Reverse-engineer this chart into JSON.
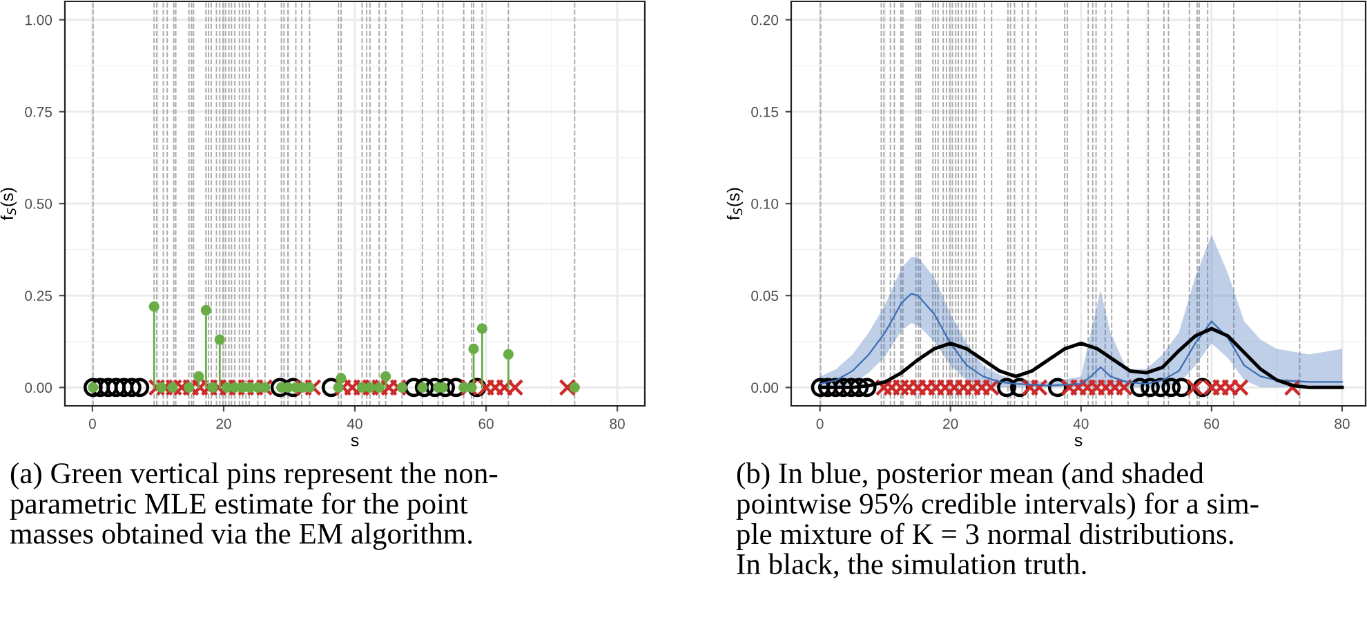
{
  "chart_data": [
    {
      "type": "lollipop",
      "xlabel": "s",
      "ylabel": "f$_{S}$(s)",
      "grid": true,
      "series": [
        {
          "color": "#6aad46",
          "marker": "circle",
          "x": [
            0.1,
            9.4,
            10.5,
            12.2,
            14.7,
            16.2,
            17.3,
            18.3,
            19.4,
            20.5,
            21.7,
            22.9,
            24.0,
            25.2,
            26.3,
            28.8,
            29.8,
            31.0,
            32.0,
            33.1,
            37.5,
            37.9,
            41.1,
            42.3,
            43.7,
            44.7,
            47.2,
            50.3,
            52.7,
            53.4,
            56.6,
            57.8,
            58.1,
            59.4,
            63.4,
            73.5
          ],
          "values": [
            0,
            0.22,
            0,
            0,
            0,
            0.03,
            0.21,
            0,
            0.13,
            0,
            0,
            0,
            0,
            0,
            0,
            0,
            0,
            0,
            0,
            0,
            0,
            0.025,
            0,
            0,
            0,
            0.03,
            0,
            0,
            0,
            0,
            0,
            0,
            0.105,
            0.16,
            0.09,
            0
          ]
        },
        {
          "type": "scatter",
          "color": "#000000",
          "marker": "circle",
          "x": [
            0.1,
            1.2,
            2.4,
            3.6,
            4.8,
            6.0,
            7.2,
            28.6,
            30.6,
            36.4,
            49.0,
            50.6,
            52.2,
            53.8,
            55.4,
            58.6
          ],
          "values": [
            0,
            0,
            0,
            0,
            0,
            0,
            0,
            0,
            0,
            0,
            0,
            0,
            0,
            0,
            0,
            0
          ]
        },
        {
          "type": "scatter",
          "color": "#cc2a2a",
          "marker": "cross",
          "x": [
            9.8,
            11.0,
            12.4,
            13.6,
            15.0,
            16.4,
            17.8,
            19.2,
            20.6,
            22.0,
            23.4,
            24.8,
            26.2,
            32.2,
            33.6,
            38.2,
            39.6,
            41.0,
            42.4,
            43.8,
            45.2,
            46.6,
            57.4,
            60.0,
            61.4,
            62.8,
            64.4,
            72.4
          ],
          "values": [
            0,
            0,
            0,
            0,
            0,
            0,
            0,
            0,
            0,
            0,
            0,
            0,
            0,
            0,
            0,
            0,
            0,
            0,
            0,
            0,
            0,
            0,
            0,
            0,
            0,
            0,
            0,
            0
          ]
        }
      ],
      "xlim": [
        -4.2,
        84.2
      ],
      "ylim": [
        -0.05,
        1.05
      ],
      "xticks": [
        0,
        20,
        40,
        60,
        80
      ],
      "yticks": [
        {
          "value": 0,
          "label": "0.00"
        },
        {
          "value": 0.25,
          "label": "0.25"
        },
        {
          "value": 0.5,
          "label": "0.50"
        },
        {
          "value": 0.75,
          "label": "0.75"
        },
        {
          "value": 1,
          "label": "1.00"
        }
      ],
      "ref_lines": [
        {
          "axis": "x",
          "value": 0.1,
          "line_style": "dashed"
        },
        {
          "axis": "x",
          "value": 9.4,
          "line_style": "dashed"
        },
        {
          "axis": "x",
          "value": 9.8,
          "line_style": "dashed"
        },
        {
          "axis": "x",
          "value": 10.8,
          "line_style": "dashed"
        },
        {
          "axis": "x",
          "value": 11.4,
          "line_style": "dashed"
        },
        {
          "axis": "x",
          "value": 12.4,
          "line_style": "dashed"
        },
        {
          "axis": "x",
          "value": 12.7,
          "line_style": "dashed"
        },
        {
          "axis": "x",
          "value": 14.7,
          "line_style": "dashed"
        },
        {
          "axis": "x",
          "value": 15.1,
          "line_style": "dashed"
        },
        {
          "axis": "x",
          "value": 15.4,
          "line_style": "dashed"
        },
        {
          "axis": "x",
          "value": 17.3,
          "line_style": "dashed"
        },
        {
          "axis": "x",
          "value": 17.7,
          "line_style": "dashed"
        },
        {
          "axis": "x",
          "value": 18.1,
          "line_style": "dashed"
        },
        {
          "axis": "x",
          "value": 18.9,
          "line_style": "dashed"
        },
        {
          "axis": "x",
          "value": 19.4,
          "line_style": "dashed"
        },
        {
          "axis": "x",
          "value": 19.9,
          "line_style": "dashed"
        },
        {
          "axis": "x",
          "value": 20.3,
          "line_style": "dashed"
        },
        {
          "axis": "x",
          "value": 20.8,
          "line_style": "dashed"
        },
        {
          "axis": "x",
          "value": 21.2,
          "line_style": "dashed"
        },
        {
          "axis": "x",
          "value": 21.7,
          "line_style": "dashed"
        },
        {
          "axis": "x",
          "value": 22.4,
          "line_style": "dashed"
        },
        {
          "axis": "x",
          "value": 22.9,
          "line_style": "dashed"
        },
        {
          "axis": "x",
          "value": 23.4,
          "line_style": "dashed"
        },
        {
          "axis": "x",
          "value": 23.9,
          "line_style": "dashed"
        },
        {
          "axis": "x",
          "value": 25.2,
          "line_style": "dashed"
        },
        {
          "axis": "x",
          "value": 26.3,
          "line_style": "dashed"
        },
        {
          "axis": "x",
          "value": 28.8,
          "line_style": "dashed"
        },
        {
          "axis": "x",
          "value": 29.2,
          "line_style": "dashed"
        },
        {
          "axis": "x",
          "value": 29.8,
          "line_style": "dashed"
        },
        {
          "axis": "x",
          "value": 31.0,
          "line_style": "dashed"
        },
        {
          "axis": "x",
          "value": 31.9,
          "line_style": "dashed"
        },
        {
          "axis": "x",
          "value": 33.1,
          "line_style": "dashed"
        },
        {
          "axis": "x",
          "value": 37.5,
          "line_style": "dashed"
        },
        {
          "axis": "x",
          "value": 37.9,
          "line_style": "dashed"
        },
        {
          "axis": "x",
          "value": 41.1,
          "line_style": "dashed"
        },
        {
          "axis": "x",
          "value": 41.8,
          "line_style": "dashed"
        },
        {
          "axis": "x",
          "value": 42.3,
          "line_style": "dashed"
        },
        {
          "axis": "x",
          "value": 43.7,
          "line_style": "dashed"
        },
        {
          "axis": "x",
          "value": 44.7,
          "line_style": "dashed"
        },
        {
          "axis": "x",
          "value": 47.2,
          "line_style": "dashed"
        },
        {
          "axis": "x",
          "value": 50.3,
          "line_style": "dashed"
        },
        {
          "axis": "x",
          "value": 52.7,
          "line_style": "dashed"
        },
        {
          "axis": "x",
          "value": 53.4,
          "line_style": "dashed"
        },
        {
          "axis": "x",
          "value": 56.6,
          "line_style": "dashed"
        },
        {
          "axis": "x",
          "value": 57.8,
          "line_style": "dashed"
        },
        {
          "axis": "x",
          "value": 58.1,
          "line_style": "dashed"
        },
        {
          "axis": "x",
          "value": 59.4,
          "line_style": "dashed"
        },
        {
          "axis": "x",
          "value": 63.4,
          "line_style": "dashed"
        },
        {
          "axis": "x",
          "value": 73.5,
          "line_style": "dashed"
        }
      ],
      "annotations": [
        "(a) Green vertical pins represent the non-\nparametric MLE estimate for the point\nmasses obtained via the EM algorithm."
      ]
    },
    {
      "type": "line",
      "xlabel": "s",
      "ylabel": "f$_{S}$(s)",
      "grid": true,
      "series": [
        {
          "color": "#3a6db5",
          "x": [
            0,
            2.5,
            5,
            7.5,
            10,
            12.5,
            14,
            15,
            17.5,
            20,
            22.5,
            25,
            27.5,
            30,
            35,
            40,
            41.5,
            43,
            44.5,
            47,
            50,
            52.5,
            55,
            57.5,
            60,
            62.5,
            65,
            67.5,
            70,
            75,
            80
          ],
          "values": [
            0.002,
            0.004,
            0.009,
            0.018,
            0.03,
            0.046,
            0.051,
            0.05,
            0.04,
            0.024,
            0.012,
            0.006,
            0.003,
            0.002,
            0.001,
            0.002,
            0.006,
            0.011,
            0.006,
            0.003,
            0.002,
            0.004,
            0.009,
            0.024,
            0.036,
            0.027,
            0.012,
            0.006,
            0.004,
            0.003,
            0.003
          ],
          "lower": [
            0,
            0,
            0.002,
            0.008,
            0.017,
            0.031,
            0.035,
            0.034,
            0.025,
            0.012,
            0.004,
            0.001,
            0,
            0,
            0,
            0,
            0,
            0.002,
            0,
            0,
            0,
            0,
            0.002,
            0.012,
            0.024,
            0.016,
            0.004,
            0,
            0,
            0,
            0
          ],
          "upper": [
            0.006,
            0.01,
            0.018,
            0.03,
            0.045,
            0.065,
            0.071,
            0.071,
            0.06,
            0.04,
            0.024,
            0.012,
            0.007,
            0.004,
            0.003,
            0.006,
            0.03,
            0.053,
            0.03,
            0.01,
            0.01,
            0.018,
            0.03,
            0.06,
            0.083,
            0.062,
            0.036,
            0.026,
            0.021,
            0.018,
            0.021
          ]
        },
        {
          "color": "#000000",
          "x": [
            0,
            2.5,
            5,
            7.5,
            10,
            12.5,
            15,
            17.5,
            20,
            22.5,
            25,
            27.5,
            30,
            32.5,
            35,
            37.5,
            40,
            42.5,
            45,
            47.5,
            50,
            52.5,
            55,
            57.5,
            60,
            62.5,
            65,
            67.5,
            70,
            72.5,
            75,
            77.5,
            80
          ],
          "values": [
            0,
            0,
            0,
            0.001,
            0.003,
            0.008,
            0.015,
            0.021,
            0.024,
            0.021,
            0.015,
            0.009,
            0.006,
            0.009,
            0.015,
            0.021,
            0.024,
            0.021,
            0.015,
            0.009,
            0.008,
            0.011,
            0.02,
            0.028,
            0.032,
            0.028,
            0.019,
            0.01,
            0.004,
            0.001,
            0,
            0,
            0
          ]
        },
        {
          "type": "scatter",
          "color": "#000000",
          "marker": "circle",
          "x": [
            0.1,
            1.2,
            2.4,
            3.6,
            4.8,
            6.0,
            7.2,
            28.6,
            30.6,
            36.4,
            49.0,
            50.6,
            52.2,
            53.8,
            55.4,
            58.6
          ],
          "values": [
            0,
            0,
            0,
            0,
            0,
            0,
            0,
            0,
            0,
            0,
            0,
            0,
            0,
            0,
            0,
            0
          ]
        },
        {
          "type": "scatter",
          "color": "#cc2a2a",
          "marker": "cross",
          "x": [
            9.8,
            11.0,
            12.4,
            13.6,
            15.0,
            16.4,
            17.8,
            19.2,
            20.6,
            22.0,
            23.4,
            24.8,
            26.2,
            32.2,
            33.6,
            38.2,
            39.6,
            41.0,
            42.4,
            43.8,
            45.2,
            46.6,
            57.4,
            60.0,
            61.4,
            62.8,
            64.4,
            72.4
          ],
          "values": [
            0,
            0,
            0,
            0,
            0,
            0,
            0,
            0,
            0,
            0,
            0,
            0,
            0,
            0,
            0,
            0,
            0,
            0,
            0,
            0,
            0,
            0,
            0,
            0,
            0,
            0,
            0,
            0
          ]
        }
      ],
      "xlim": [
        -4.4,
        83.6
      ],
      "ylim": [
        -0.01,
        0.21
      ],
      "xticks": [
        0,
        20,
        40,
        60,
        80
      ],
      "yticks": [
        {
          "value": 0,
          "label": "0.00"
        },
        {
          "value": 0.05,
          "label": "0.05"
        },
        {
          "value": 0.1,
          "label": "0.10"
        },
        {
          "value": 0.15,
          "label": "0.15"
        },
        {
          "value": 0.2,
          "label": "0.20"
        }
      ],
      "ref_lines": [
        {
          "axis": "x",
          "value": 0.1,
          "line_style": "dashed"
        },
        {
          "axis": "x",
          "value": 9.4,
          "line_style": "dashed"
        },
        {
          "axis": "x",
          "value": 9.8,
          "line_style": "dashed"
        },
        {
          "axis": "x",
          "value": 10.8,
          "line_style": "dashed"
        },
        {
          "axis": "x",
          "value": 11.4,
          "line_style": "dashed"
        },
        {
          "axis": "x",
          "value": 12.4,
          "line_style": "dashed"
        },
        {
          "axis": "x",
          "value": 12.7,
          "line_style": "dashed"
        },
        {
          "axis": "x",
          "value": 14.7,
          "line_style": "dashed"
        },
        {
          "axis": "x",
          "value": 15.1,
          "line_style": "dashed"
        },
        {
          "axis": "x",
          "value": 15.4,
          "line_style": "dashed"
        },
        {
          "axis": "x",
          "value": 17.3,
          "line_style": "dashed"
        },
        {
          "axis": "x",
          "value": 17.7,
          "line_style": "dashed"
        },
        {
          "axis": "x",
          "value": 18.1,
          "line_style": "dashed"
        },
        {
          "axis": "x",
          "value": 18.9,
          "line_style": "dashed"
        },
        {
          "axis": "x",
          "value": 19.4,
          "line_style": "dashed"
        },
        {
          "axis": "x",
          "value": 19.9,
          "line_style": "dashed"
        },
        {
          "axis": "x",
          "value": 20.3,
          "line_style": "dashed"
        },
        {
          "axis": "x",
          "value": 20.8,
          "line_style": "dashed"
        },
        {
          "axis": "x",
          "value": 21.2,
          "line_style": "dashed"
        },
        {
          "axis": "x",
          "value": 21.7,
          "line_style": "dashed"
        },
        {
          "axis": "x",
          "value": 22.4,
          "line_style": "dashed"
        },
        {
          "axis": "x",
          "value": 22.9,
          "line_style": "dashed"
        },
        {
          "axis": "x",
          "value": 23.4,
          "line_style": "dashed"
        },
        {
          "axis": "x",
          "value": 23.9,
          "line_style": "dashed"
        },
        {
          "axis": "x",
          "value": 25.2,
          "line_style": "dashed"
        },
        {
          "axis": "x",
          "value": 26.3,
          "line_style": "dashed"
        },
        {
          "axis": "x",
          "value": 28.8,
          "line_style": "dashed"
        },
        {
          "axis": "x",
          "value": 29.2,
          "line_style": "dashed"
        },
        {
          "axis": "x",
          "value": 29.8,
          "line_style": "dashed"
        },
        {
          "axis": "x",
          "value": 31.0,
          "line_style": "dashed"
        },
        {
          "axis": "x",
          "value": 31.9,
          "line_style": "dashed"
        },
        {
          "axis": "x",
          "value": 33.1,
          "line_style": "dashed"
        },
        {
          "axis": "x",
          "value": 37.5,
          "line_style": "dashed"
        },
        {
          "axis": "x",
          "value": 37.9,
          "line_style": "dashed"
        },
        {
          "axis": "x",
          "value": 41.1,
          "line_style": "dashed"
        },
        {
          "axis": "x",
          "value": 41.8,
          "line_style": "dashed"
        },
        {
          "axis": "x",
          "value": 42.3,
          "line_style": "dashed"
        },
        {
          "axis": "x",
          "value": 43.7,
          "line_style": "dashed"
        },
        {
          "axis": "x",
          "value": 44.7,
          "line_style": "dashed"
        },
        {
          "axis": "x",
          "value": 47.2,
          "line_style": "dashed"
        },
        {
          "axis": "x",
          "value": 50.3,
          "line_style": "dashed"
        },
        {
          "axis": "x",
          "value": 52.7,
          "line_style": "dashed"
        },
        {
          "axis": "x",
          "value": 53.4,
          "line_style": "dashed"
        },
        {
          "axis": "x",
          "value": 56.6,
          "line_style": "dashed"
        },
        {
          "axis": "x",
          "value": 57.8,
          "line_style": "dashed"
        },
        {
          "axis": "x",
          "value": 58.1,
          "line_style": "dashed"
        },
        {
          "axis": "x",
          "value": 59.4,
          "line_style": "dashed"
        },
        {
          "axis": "x",
          "value": 63.4,
          "line_style": "dashed"
        },
        {
          "axis": "x",
          "value": 73.5,
          "line_style": "dashed"
        }
      ],
      "annotations": [
        "(b) In blue, posterior mean (and shaded\npointwise 95% credible intervals) for a sim-\nple mixture of K = 3 normal distributions.\nIn black, the simulation truth."
      ]
    }
  ]
}
